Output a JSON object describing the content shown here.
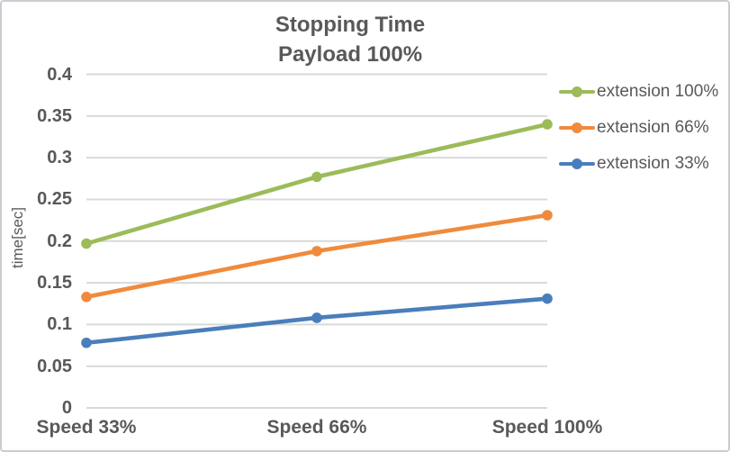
{
  "colors": {
    "text": "#595959",
    "grid": "#d9d9d9",
    "background": "#ffffff",
    "border": "#c9ccd1"
  },
  "chart_data": {
    "type": "line",
    "title_lines": [
      "Stopping Time",
      "Payload 100%"
    ],
    "xlabel": "",
    "ylabel": "time[sec]",
    "categories": [
      "Speed 33%",
      "Speed 66%",
      "Speed 100%"
    ],
    "series": [
      {
        "name": "extension 100%",
        "color": "#9cbb59",
        "values": [
          0.197,
          0.277,
          0.34
        ]
      },
      {
        "name": "extension 66%",
        "color": "#f08a3c",
        "values": [
          0.133,
          0.188,
          0.231
        ]
      },
      {
        "name": "extension 33%",
        "color": "#4a7ebb",
        "values": [
          0.078,
          0.108,
          0.131
        ]
      }
    ],
    "ylim": [
      0,
      0.4
    ],
    "y_tick_step": 0.05,
    "y_ticks": [
      "0",
      "0.05",
      "0.1",
      "0.15",
      "0.2",
      "0.25",
      "0.3",
      "0.35",
      "0.4"
    ],
    "grid": "horizontal",
    "legend_position": "right",
    "marker": "circle"
  }
}
